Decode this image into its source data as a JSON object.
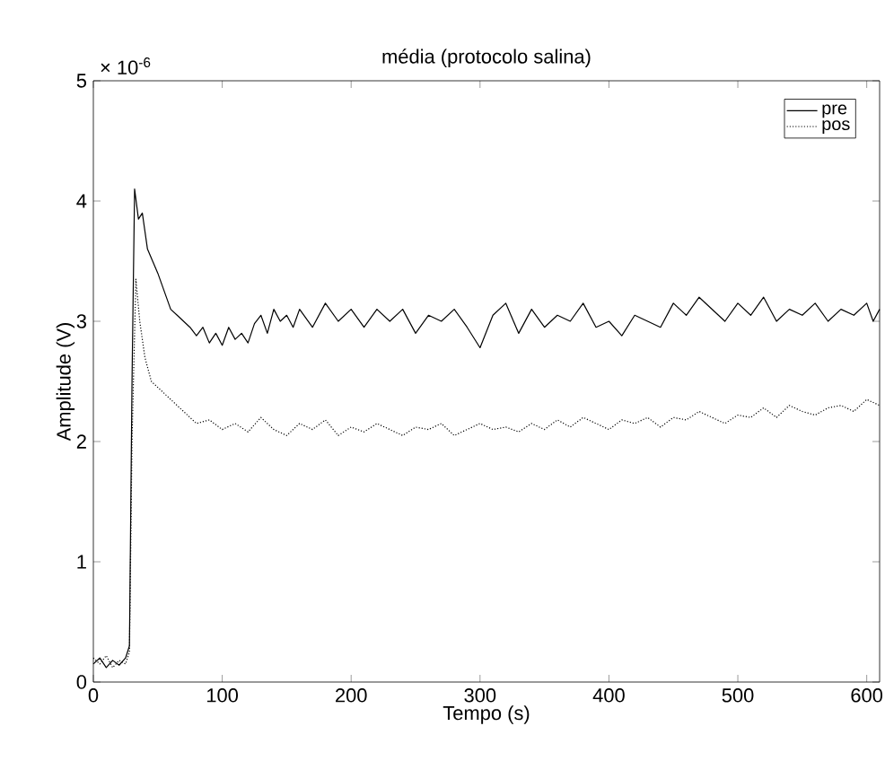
{
  "chart_data": {
    "type": "line",
    "title": "média (protocolo salina)",
    "xlabel": "Tempo (s)",
    "ylabel": "Amplitude (V)",
    "annotations": [
      "× 10$^{-6}$"
    ],
    "xlim": [
      0,
      610
    ],
    "ylim": [
      0,
      5
    ],
    "xticks": [
      0,
      100,
      200,
      300,
      400,
      500,
      600
    ],
    "yticks": [
      0,
      1,
      2,
      3,
      4,
      5
    ],
    "grid": false,
    "legend": "top right",
    "series": [
      {
        "name": "pre",
        "color": "#000000",
        "line_style": "solid",
        "x": [
          0,
          5,
          10,
          15,
          20,
          25,
          28,
          30,
          32,
          35,
          38,
          42,
          46,
          50,
          55,
          60,
          65,
          70,
          75,
          80,
          85,
          90,
          95,
          100,
          105,
          110,
          115,
          120,
          125,
          130,
          135,
          140,
          145,
          150,
          155,
          160,
          170,
          180,
          190,
          200,
          210,
          220,
          230,
          240,
          250,
          260,
          270,
          280,
          290,
          300,
          310,
          320,
          330,
          340,
          350,
          360,
          370,
          380,
          390,
          400,
          410,
          420,
          430,
          440,
          450,
          460,
          470,
          480,
          490,
          500,
          510,
          520,
          530,
          540,
          550,
          560,
          570,
          580,
          590,
          600,
          605,
          610
        ],
        "values": [
          0.15,
          0.2,
          0.12,
          0.18,
          0.14,
          0.2,
          0.3,
          2.5,
          4.1,
          3.85,
          3.9,
          3.6,
          3.5,
          3.4,
          3.25,
          3.1,
          3.05,
          3.0,
          2.95,
          2.88,
          2.95,
          2.82,
          2.9,
          2.8,
          2.95,
          2.85,
          2.9,
          2.82,
          2.98,
          3.05,
          2.9,
          3.1,
          3.0,
          3.05,
          2.95,
          3.1,
          2.95,
          3.15,
          3.0,
          3.1,
          2.95,
          3.1,
          3.0,
          3.1,
          2.9,
          3.05,
          3.0,
          3.1,
          2.95,
          2.78,
          3.05,
          3.15,
          2.9,
          3.1,
          2.95,
          3.05,
          3.0,
          3.15,
          2.95,
          3.0,
          2.88,
          3.05,
          3.0,
          2.95,
          3.15,
          3.05,
          3.2,
          3.1,
          3.0,
          3.15,
          3.05,
          3.2,
          3.0,
          3.1,
          3.05,
          3.15,
          3.0,
          3.1,
          3.05,
          3.15,
          3.0,
          3.1
        ]
      },
      {
        "name": "pos",
        "color": "#000000",
        "line_style": "dotted",
        "x": [
          0,
          5,
          10,
          15,
          20,
          25,
          28,
          30,
          33,
          36,
          40,
          45,
          50,
          55,
          60,
          65,
          70,
          75,
          80,
          90,
          100,
          110,
          120,
          130,
          140,
          150,
          160,
          170,
          180,
          190,
          200,
          210,
          220,
          230,
          240,
          250,
          260,
          270,
          280,
          290,
          300,
          310,
          320,
          330,
          340,
          350,
          360,
          370,
          380,
          390,
          400,
          410,
          420,
          430,
          440,
          450,
          460,
          470,
          480,
          490,
          500,
          510,
          520,
          530,
          540,
          550,
          560,
          570,
          580,
          590,
          600,
          610
        ],
        "values": [
          0.2,
          0.15,
          0.22,
          0.12,
          0.18,
          0.15,
          0.25,
          2.0,
          3.35,
          3.0,
          2.7,
          2.5,
          2.45,
          2.4,
          2.35,
          2.3,
          2.25,
          2.2,
          2.15,
          2.18,
          2.1,
          2.15,
          2.08,
          2.2,
          2.1,
          2.05,
          2.15,
          2.1,
          2.18,
          2.05,
          2.12,
          2.08,
          2.15,
          2.1,
          2.05,
          2.12,
          2.1,
          2.15,
          2.05,
          2.1,
          2.15,
          2.1,
          2.12,
          2.08,
          2.15,
          2.1,
          2.18,
          2.12,
          2.2,
          2.15,
          2.1,
          2.18,
          2.15,
          2.2,
          2.12,
          2.2,
          2.18,
          2.25,
          2.2,
          2.15,
          2.22,
          2.2,
          2.28,
          2.2,
          2.3,
          2.25,
          2.22,
          2.28,
          2.3,
          2.25,
          2.35,
          2.3
        ]
      }
    ]
  }
}
